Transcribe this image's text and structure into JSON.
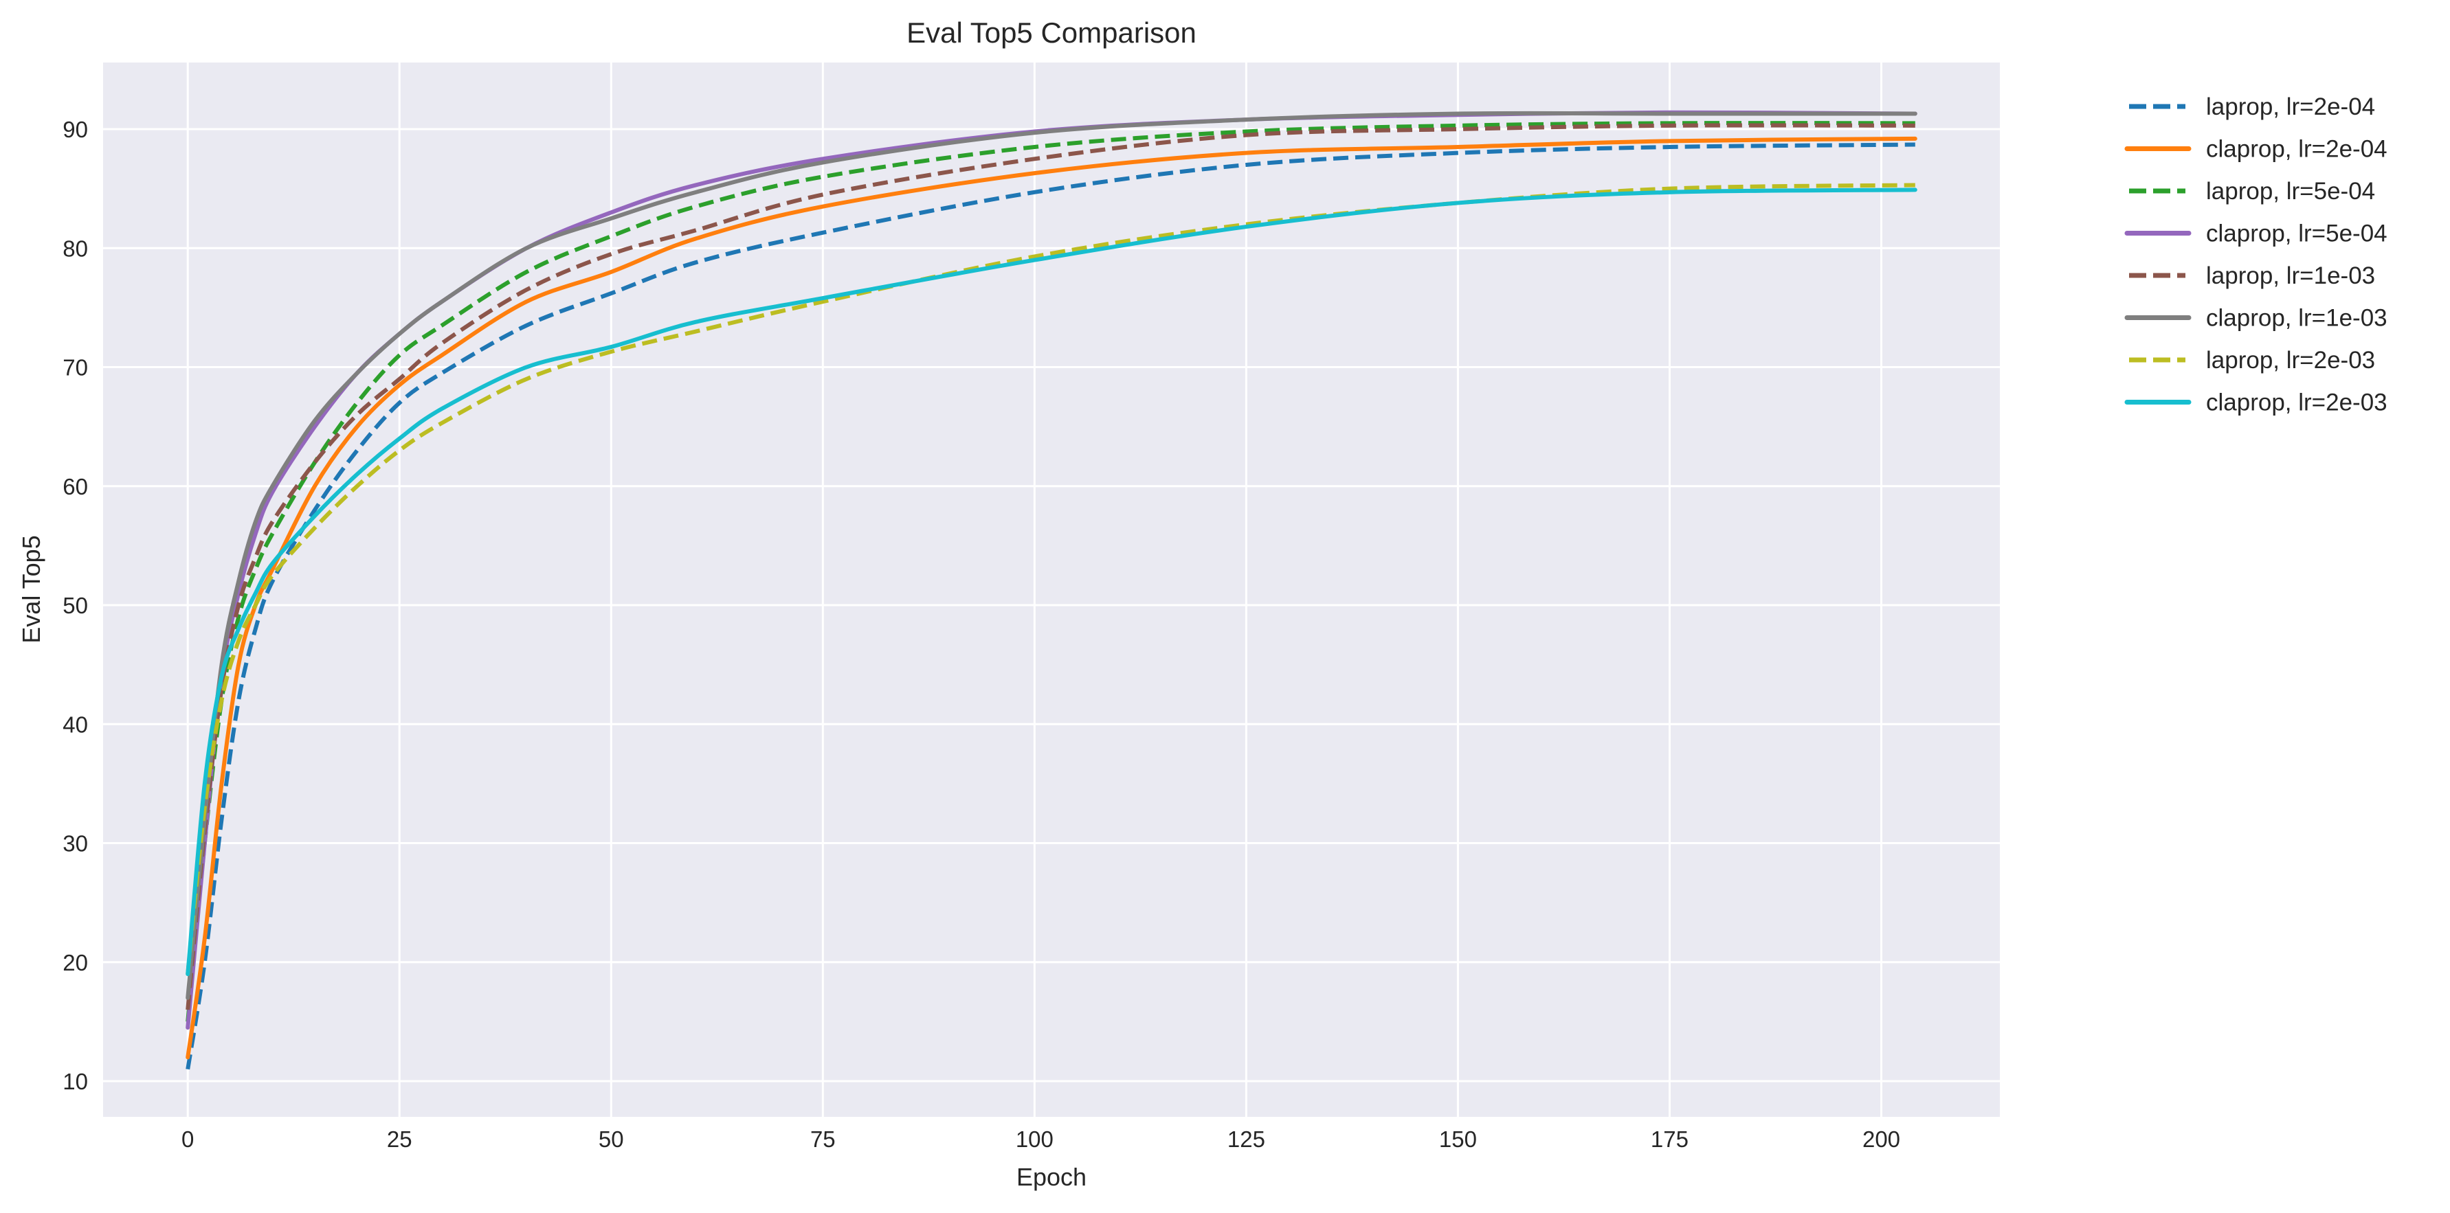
{
  "chart_data": {
    "type": "line",
    "title": "Eval Top5 Comparison",
    "xlabel": "Epoch",
    "ylabel": "Eval Top5",
    "xlim": [
      -10,
      214
    ],
    "ylim": [
      7,
      95.6
    ],
    "xticks": [
      0,
      25,
      50,
      75,
      100,
      125,
      150,
      175,
      200
    ],
    "yticks": [
      10,
      20,
      30,
      40,
      50,
      60,
      70,
      80,
      90
    ],
    "grid": true,
    "background": "#eaeaf2",
    "legend_placement": "outside-top-right",
    "x": [
      0,
      2,
      4,
      6,
      8,
      10,
      15,
      20,
      25,
      30,
      40,
      50,
      60,
      75,
      100,
      125,
      150,
      175,
      204
    ],
    "series": [
      {
        "name": "laprop, lr=2e-04",
        "color": "#1f77b4",
        "style": "dashed",
        "values": [
          11,
          20,
          32,
          42,
          48,
          52,
          58,
          63,
          67,
          69.5,
          73.5,
          76.2,
          78.8,
          81.3,
          84.7,
          87,
          88,
          88.5,
          88.7
        ]
      },
      {
        "name": "claprop, lr=2e-04",
        "color": "#ff7f0e",
        "style": "solid",
        "values": [
          12,
          22,
          35,
          45,
          50,
          53,
          60,
          65,
          68.5,
          71,
          75.5,
          78,
          80.8,
          83.5,
          86.3,
          88,
          88.5,
          89,
          89.2
        ]
      },
      {
        "name": "laprop, lr=5e-04",
        "color": "#2ca02c",
        "style": "dashed",
        "values": [
          15,
          30,
          42,
          49,
          53,
          56,
          62,
          67,
          71,
          73.5,
          78,
          81,
          83.5,
          86,
          88.5,
          89.8,
          90.3,
          90.5,
          90.5
        ]
      },
      {
        "name": "claprop, lr=5e-04",
        "color": "#9467bd",
        "style": "solid",
        "values": [
          14.5,
          30,
          44,
          51,
          56,
          59.5,
          65,
          69.5,
          72.8,
          75.5,
          80,
          83,
          85.3,
          87.5,
          89.8,
          90.8,
          91.2,
          91.4,
          91.3
        ]
      },
      {
        "name": "laprop, lr=1e-03",
        "color": "#8c564b",
        "style": "dashed",
        "values": [
          16,
          31,
          43,
          50,
          54,
          57,
          62,
          66,
          69,
          72,
          76.5,
          79.5,
          81.5,
          84.5,
          87.5,
          89.5,
          90,
          90.3,
          90.3
        ]
      },
      {
        "name": "claprop, lr=1e-03",
        "color": "#7f7f7f",
        "style": "solid",
        "values": [
          17,
          32,
          45,
          52,
          57,
          60,
          65.5,
          69.5,
          72.8,
          75.5,
          80,
          82.5,
          84.7,
          87.2,
          89.7,
          90.8,
          91.3,
          91.3,
          91.3
        ]
      },
      {
        "name": "laprop, lr=2e-03",
        "color": "#bcbd22",
        "style": "dashed",
        "values": [
          19,
          33,
          42,
          47,
          50,
          52.5,
          56.5,
          60,
          63,
          65.3,
          69,
          71.3,
          73,
          75.5,
          79.3,
          82,
          83.8,
          85,
          85.3
        ]
      },
      {
        "name": "claprop, lr=2e-03",
        "color": "#17becf",
        "style": "solid",
        "values": [
          19,
          35,
          44,
          48,
          51,
          53.5,
          57.5,
          61,
          64,
          66.5,
          70,
          71.7,
          73.8,
          75.8,
          79,
          81.8,
          83.8,
          84.7,
          84.9
        ]
      }
    ]
  }
}
